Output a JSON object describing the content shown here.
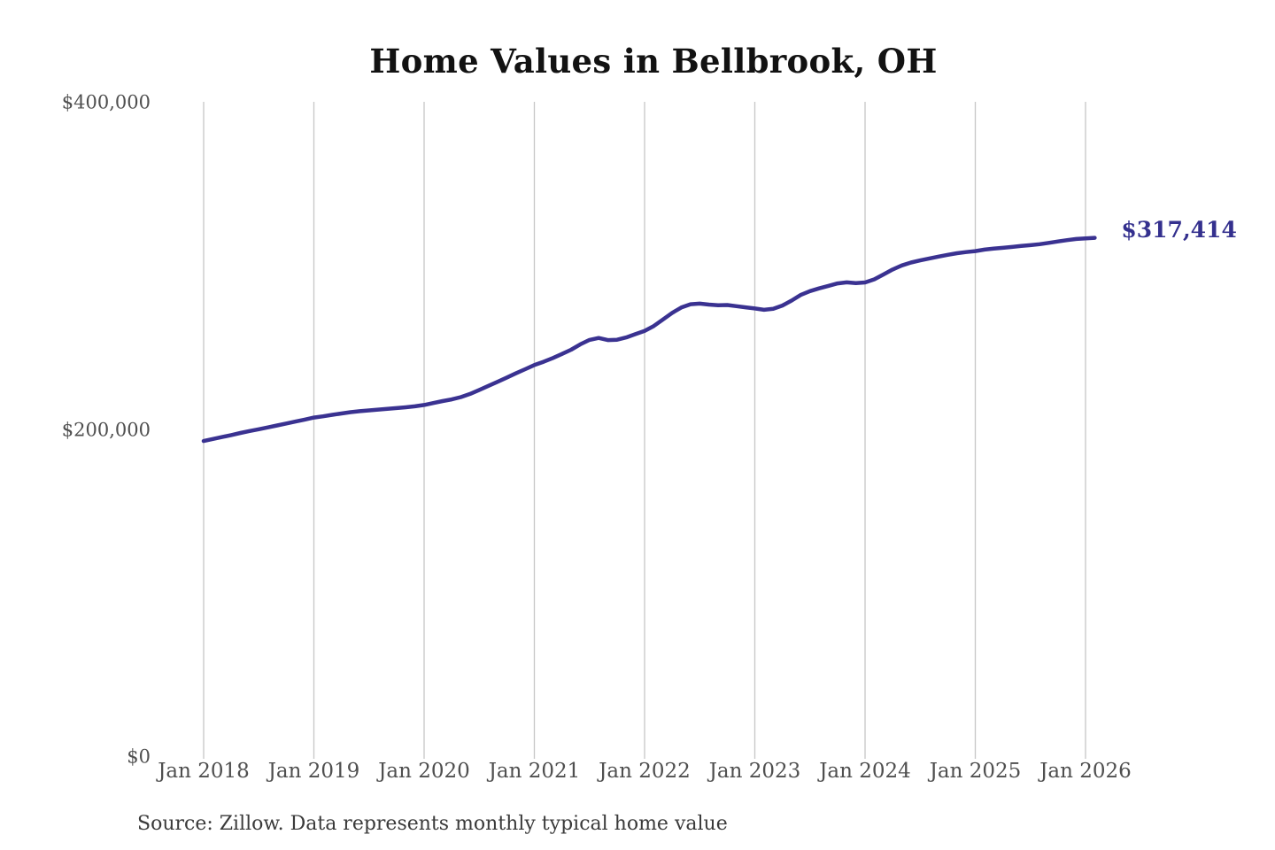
{
  "title": "Home Values in Bellbrook, OH",
  "source_note": "Source: Zillow. Data represents monthly typical home value",
  "end_label": "$317,414",
  "colors": {
    "line": "#3a3291",
    "end_label_text": "#34308e",
    "grid": "#c7c7c7",
    "axis_text": "#4f4f4f",
    "title_text": "#121212",
    "source_text": "#3a3a3a",
    "background": "#ffffff"
  },
  "chart_data": {
    "type": "line",
    "title": "Home Values in Bellbrook, OH",
    "series_name": "Monthly typical home value",
    "xlabel": "",
    "ylabel": "",
    "ylim": [
      0,
      400000
    ],
    "grid": "vertical-only",
    "legend": "none",
    "last_value": 317414,
    "last_value_label": "$317,414",
    "y_ticks": [
      {
        "label": "$400,000",
        "value": 400000
      },
      {
        "label": "$200,000",
        "value": 200000
      },
      {
        "label": "$0",
        "value": 0
      }
    ],
    "x_tick_labels": [
      "Jan 2018",
      "Jan 2019",
      "Jan 2020",
      "Jan 2021",
      "Jan 2022",
      "Jan 2023",
      "Jan 2024",
      "Jan 2025",
      "Jan 2026"
    ],
    "x_tick_month_indices": [
      0,
      12,
      24,
      36,
      48,
      60,
      72,
      84,
      96
    ],
    "months": [
      "2018-01",
      "2018-02",
      "2018-03",
      "2018-04",
      "2018-05",
      "2018-06",
      "2018-07",
      "2018-08",
      "2018-09",
      "2018-10",
      "2018-11",
      "2018-12",
      "2019-01",
      "2019-02",
      "2019-03",
      "2019-04",
      "2019-05",
      "2019-06",
      "2019-07",
      "2019-08",
      "2019-09",
      "2019-10",
      "2019-11",
      "2019-12",
      "2020-01",
      "2020-02",
      "2020-03",
      "2020-04",
      "2020-05",
      "2020-06",
      "2020-07",
      "2020-08",
      "2020-09",
      "2020-10",
      "2020-11",
      "2020-12",
      "2021-01",
      "2021-02",
      "2021-03",
      "2021-04",
      "2021-05",
      "2021-06",
      "2021-07",
      "2021-08",
      "2021-09",
      "2021-10",
      "2021-11",
      "2021-12",
      "2022-01",
      "2022-02",
      "2022-03",
      "2022-04",
      "2022-05",
      "2022-06",
      "2022-07",
      "2022-08",
      "2022-09",
      "2022-10",
      "2022-11",
      "2022-12",
      "2023-01",
      "2023-02",
      "2023-03",
      "2023-04",
      "2023-05",
      "2023-06",
      "2023-07",
      "2023-08",
      "2023-09",
      "2023-10",
      "2023-11",
      "2023-12",
      "2024-01",
      "2024-02",
      "2024-03",
      "2024-04",
      "2024-05",
      "2024-06",
      "2024-07",
      "2024-08",
      "2024-09",
      "2024-10",
      "2024-11",
      "2024-12",
      "2025-01",
      "2025-02",
      "2025-03",
      "2025-04",
      "2025-05",
      "2025-06",
      "2025-07",
      "2025-08",
      "2025-09",
      "2025-10",
      "2025-11",
      "2025-12",
      "2026-01",
      "2026-02"
    ],
    "values": [
      193200,
      194400,
      195600,
      196800,
      198100,
      199300,
      200400,
      201500,
      202700,
      203900,
      205100,
      206300,
      207500,
      208300,
      209200,
      210000,
      210800,
      211400,
      211900,
      212400,
      212900,
      213300,
      213800,
      214400,
      215200,
      216400,
      217600,
      218600,
      220000,
      222000,
      224400,
      226900,
      229400,
      232000,
      234600,
      237100,
      239600,
      241600,
      243900,
      246400,
      249000,
      252300,
      255000,
      256200,
      254900,
      255100,
      256500,
      258500,
      260500,
      263500,
      267500,
      271500,
      274800,
      276800,
      277200,
      276600,
      276200,
      276300,
      275600,
      274900,
      274200,
      273400,
      274000,
      276000,
      279000,
      282500,
      284800,
      286500,
      288000,
      289500,
      290200,
      289700,
      290100,
      292000,
      295000,
      298000,
      300500,
      302300,
      303600,
      304800,
      305900,
      307000,
      308000,
      308700,
      309300,
      310200,
      310800,
      311300,
      311800,
      312400,
      312900,
      313500,
      314300,
      315200,
      316000,
      316700,
      317100,
      317414
    ]
  }
}
